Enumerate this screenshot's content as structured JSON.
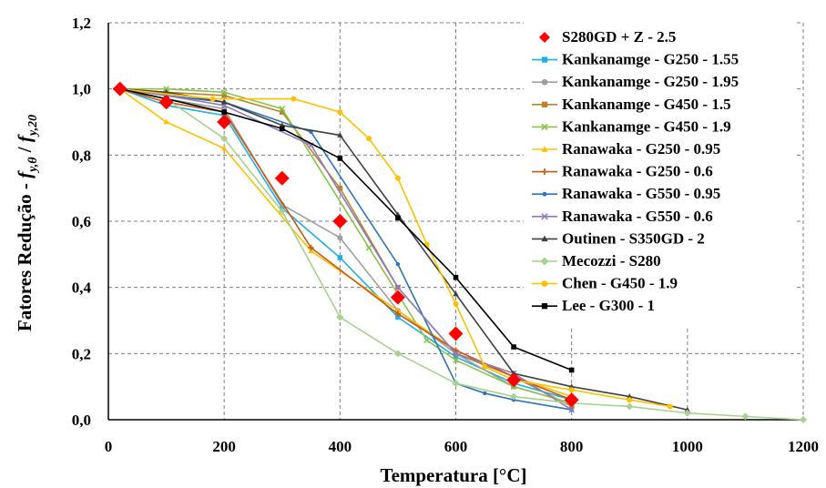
{
  "chart_data": {
    "type": "line",
    "xlabel": "Temperatura [°C]",
    "ylabel_parts": [
      "Fatores Redução - ",
      "f",
      "y,θ",
      " / ",
      "f",
      "y,20"
    ],
    "xlim": [
      0,
      1200
    ],
    "ylim": [
      0,
      1.2
    ],
    "x_ticks": [
      0,
      200,
      400,
      600,
      800,
      1000,
      1200
    ],
    "y_ticks": [
      0.0,
      0.2,
      0.4,
      0.6,
      0.8,
      1.0,
      1.2
    ],
    "x_tick_labels": [
      "0",
      "200",
      "400",
      "600",
      "800",
      "1000",
      "1200"
    ],
    "y_tick_labels": [
      "0,0",
      "0,2",
      "0,4",
      "0,6",
      "0,8",
      "1,0",
      "1,2"
    ],
    "grid": "dashed",
    "legend_position": "top-right",
    "series": [
      {
        "name": "S280GD + Z - 2.5",
        "color": "#ff0000",
        "marker": "diamond",
        "line": false,
        "x": [
          20,
          100,
          200,
          300,
          400,
          500,
          600,
          700,
          800
        ],
        "y": [
          1.0,
          0.96,
          0.9,
          0.73,
          0.6,
          0.37,
          0.26,
          0.12,
          0.06
        ]
      },
      {
        "name": "Kankanamge - G250 - 1.55",
        "color": "#1eb0e6",
        "marker": "square",
        "line": true,
        "x": [
          20,
          100,
          200,
          300,
          400,
          500,
          600,
          700,
          800
        ],
        "y": [
          1.0,
          0.95,
          0.92,
          0.64,
          0.49,
          0.31,
          0.19,
          0.11,
          0.06
        ]
      },
      {
        "name": "Kankanamge - G250 - 1.95",
        "color": "#a0a0a0",
        "marker": "circle",
        "line": true,
        "x": [
          20,
          100,
          200,
          300,
          400,
          500,
          600,
          700,
          800
        ],
        "y": [
          1.0,
          0.97,
          0.94,
          0.65,
          0.55,
          0.33,
          0.2,
          0.1,
          0.05
        ]
      },
      {
        "name": "Kankanamge - G450 - 1.5",
        "color": "#b8862b",
        "marker": "square",
        "line": true,
        "x": [
          20,
          100,
          200,
          300,
          400,
          500,
          600,
          700,
          800
        ],
        "y": [
          1.0,
          0.99,
          0.98,
          0.93,
          0.7,
          0.4,
          0.2,
          0.13,
          0.04
        ]
      },
      {
        "name": "Kankanamge - G450 - 1.9",
        "color": "#8bc34a",
        "marker": "x",
        "line": true,
        "x": [
          20,
          100,
          200,
          300,
          450,
          550,
          600,
          700,
          800
        ],
        "y": [
          1.0,
          1.0,
          0.99,
          0.94,
          0.52,
          0.24,
          0.18,
          0.1,
          0.05
        ]
      },
      {
        "name": "Ranawaka - G250 - 0.95",
        "color": "#ffc000",
        "marker": "triangle",
        "line": true,
        "x": [
          20,
          100,
          200,
          350,
          500,
          600,
          700,
          800
        ],
        "y": [
          1.0,
          0.9,
          0.82,
          0.51,
          0.33,
          0.21,
          0.13,
          0.07
        ]
      },
      {
        "name": "Ranawaka - G250 - 0.6",
        "color": "#c55a11",
        "marker": "plus",
        "line": true,
        "x": [
          20,
          100,
          200,
          350,
          500,
          600,
          700,
          800
        ],
        "y": [
          1.0,
          0.96,
          0.93,
          0.52,
          0.32,
          0.21,
          0.13,
          0.06
        ]
      },
      {
        "name": "Ranawaka - G550 - 0.95",
        "color": "#2e75b6",
        "marker": "dot",
        "line": true,
        "x": [
          20,
          100,
          200,
          350,
          500,
          600,
          650,
          700,
          800
        ],
        "y": [
          1.0,
          0.98,
          0.96,
          0.87,
          0.47,
          0.11,
          0.08,
          0.06,
          0.03
        ]
      },
      {
        "name": "Ranawaka - G550 - 0.6",
        "color": "#8e7cc3",
        "marker": "x",
        "line": true,
        "x": [
          20,
          100,
          200,
          350,
          500,
          600,
          700,
          800
        ],
        "y": [
          1.0,
          0.98,
          0.95,
          0.83,
          0.4,
          0.2,
          0.14,
          0.03
        ]
      },
      {
        "name": "Outinen - S350GD - 2",
        "color": "#404040",
        "marker": "triangle",
        "line": true,
        "x": [
          20,
          100,
          200,
          300,
          400,
          500,
          600,
          700,
          800,
          900,
          1000
        ],
        "y": [
          1.0,
          0.99,
          0.96,
          0.89,
          0.86,
          0.62,
          0.38,
          0.14,
          0.1,
          0.07,
          0.03
        ]
      },
      {
        "name": "Mecozzi - S280",
        "color": "#a9d18e",
        "marker": "diamond",
        "line": true,
        "x": [
          20,
          100,
          200,
          300,
          400,
          500,
          600,
          700,
          800,
          900,
          1000,
          1100,
          1200
        ],
        "y": [
          1.0,
          0.97,
          0.85,
          0.63,
          0.31,
          0.2,
          0.11,
          0.07,
          0.05,
          0.04,
          0.02,
          0.01,
          0.0
        ]
      },
      {
        "name": "Chen - G450 - 1.9",
        "color": "#ffc000",
        "marker": "circle",
        "line": true,
        "x": [
          20,
          180,
          320,
          400,
          450,
          500,
          550,
          600,
          650,
          700,
          800,
          900,
          970
        ],
        "y": [
          1.0,
          0.97,
          0.97,
          0.93,
          0.85,
          0.73,
          0.53,
          0.35,
          0.16,
          0.12,
          0.09,
          0.06,
          0.04
        ]
      },
      {
        "name": "Lee - G300 - 1",
        "color": "#000000",
        "marker": "square",
        "line": true,
        "x": [
          20,
          100,
          200,
          300,
          400,
          500,
          600,
          700,
          800
        ],
        "y": [
          1.0,
          0.97,
          0.93,
          0.88,
          0.79,
          0.61,
          0.43,
          0.22,
          0.15
        ]
      }
    ]
  }
}
